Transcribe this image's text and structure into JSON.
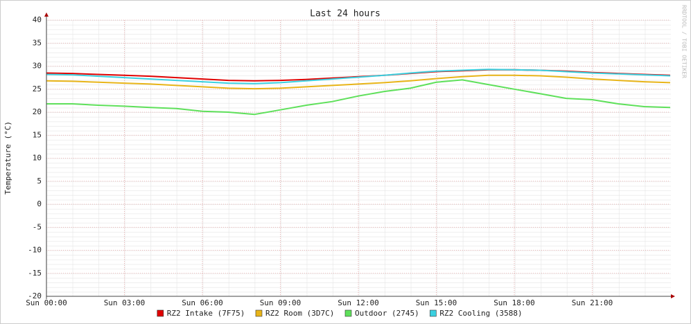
{
  "chart_data": {
    "type": "line",
    "title": "Last 24 hours",
    "y_label": "Temperature (°C)",
    "watermark": "RRDTOOL / TOBI OETIKER",
    "x": [
      0,
      1,
      2,
      3,
      4,
      5,
      6,
      7,
      8,
      9,
      10,
      11,
      12,
      13,
      14,
      15,
      16,
      17,
      18,
      19,
      20,
      21,
      22,
      23,
      24
    ],
    "xlim": [
      0,
      24
    ],
    "xticks": [
      {
        "value": 0,
        "label": "Sun 00:00"
      },
      {
        "value": 3,
        "label": "Sun 03:00"
      },
      {
        "value": 6,
        "label": "Sun 06:00"
      },
      {
        "value": 9,
        "label": "Sun 09:00"
      },
      {
        "value": 12,
        "label": "Sun 12:00"
      },
      {
        "value": 15,
        "label": "Sun 15:00"
      },
      {
        "value": 18,
        "label": "Sun 18:00"
      },
      {
        "value": 21,
        "label": "Sun 21:00"
      }
    ],
    "ylim": [
      -20,
      40
    ],
    "yticks": [
      -20,
      -15,
      -10,
      -5,
      0,
      5,
      10,
      15,
      20,
      25,
      30,
      35,
      40
    ],
    "grid": true,
    "series": [
      {
        "name": "RZ2 Intake (7F75)",
        "color": "#e00000",
        "values": [
          28.5,
          28.4,
          28.2,
          28.0,
          27.8,
          27.5,
          27.2,
          26.9,
          26.8,
          26.9,
          27.1,
          27.4,
          27.7,
          28.0,
          28.4,
          28.8,
          29.0,
          29.2,
          29.2,
          29.1,
          28.9,
          28.6,
          28.4,
          28.2,
          28.0
        ]
      },
      {
        "name": "RZ2 Room (3D7C)",
        "color": "#e8b418",
        "values": [
          26.8,
          26.7,
          26.5,
          26.3,
          26.1,
          25.8,
          25.5,
          25.2,
          25.1,
          25.2,
          25.5,
          25.8,
          26.1,
          26.4,
          26.8,
          27.3,
          27.7,
          28.0,
          28.0,
          27.9,
          27.6,
          27.2,
          26.9,
          26.6,
          26.4
        ]
      },
      {
        "name": "Outdoor (2745)",
        "color": "#5ee05a",
        "values": [
          21.8,
          21.8,
          21.5,
          21.3,
          21.0,
          20.8,
          20.2,
          20.0,
          19.5,
          20.5,
          21.5,
          22.3,
          23.5,
          24.5,
          25.2,
          26.5,
          27.0,
          26.0,
          25.0,
          24.0,
          23.0,
          22.7,
          21.8,
          21.2,
          21.0
        ]
      },
      {
        "name": "RZ2 Cooling (3588)",
        "color": "#3ad0e0",
        "values": [
          28.2,
          28.1,
          27.8,
          27.5,
          27.2,
          26.9,
          26.6,
          26.3,
          26.2,
          26.4,
          26.8,
          27.2,
          27.6,
          28.0,
          28.5,
          28.9,
          29.1,
          29.3,
          29.2,
          29.1,
          28.8,
          28.5,
          28.3,
          28.1,
          27.9
        ]
      }
    ]
  }
}
